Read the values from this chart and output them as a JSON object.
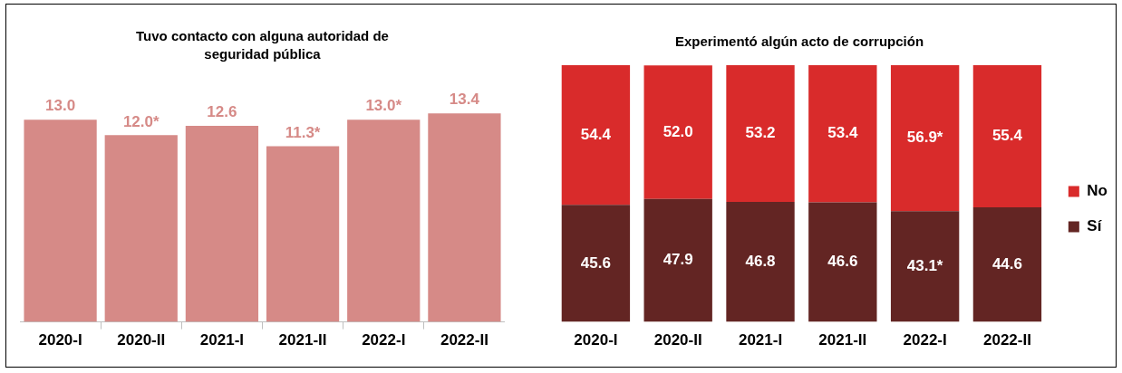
{
  "chart_data": [
    {
      "type": "bar",
      "title": "Tuvo contacto con alguna autoridad de seguridad pública",
      "categories": [
        "2020-I",
        "2020-II",
        "2021-I",
        "2021-II",
        "2022-I",
        "2022-II"
      ],
      "values": [
        13.0,
        12.0,
        12.6,
        11.3,
        13.0,
        13.4
      ],
      "color": "#d68a87",
      "value_labels": [
        "13.0",
        "12.0*",
        "12.6",
        "11.3*",
        "13.0*",
        "13.4"
      ]
    },
    {
      "type": "bar",
      "stacked": true,
      "title": "Experimentó algún acto de corrupción",
      "categories": [
        "2020-I",
        "2020-II",
        "2021-I",
        "2021-II",
        "2022-I",
        "2022-II"
      ],
      "legend": "right",
      "series": [
        {
          "name": "Sí",
          "color": "#632523",
          "values": [
            45.6,
            47.9,
            46.8,
            46.6,
            43.1,
            44.6
          ],
          "value_labels": [
            "45.6",
            "47.9",
            "46.8",
            "46.6",
            "43.1*",
            "44.6"
          ]
        },
        {
          "name": "No",
          "color": "#d92b2b",
          "values": [
            54.4,
            52.0,
            53.2,
            53.4,
            56.9,
            55.4
          ],
          "value_labels": [
            "54.4",
            "52.0",
            "53.2",
            "53.4",
            "56.9*",
            "55.4"
          ]
        }
      ]
    }
  ]
}
